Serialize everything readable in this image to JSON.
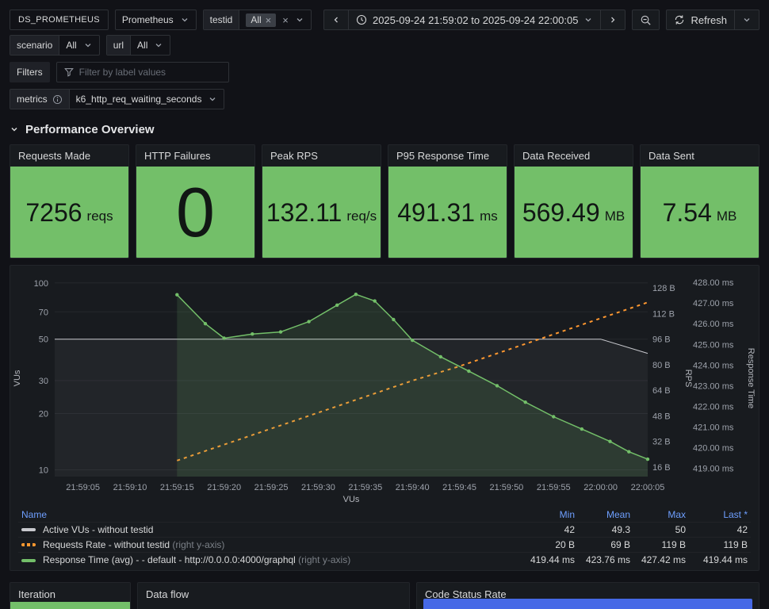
{
  "colors": {
    "green": "#73BF69",
    "orange": "#FF9830",
    "gray_series": "#C8C9CE",
    "legend_header_blue": "#6E9FFF",
    "status_bar_blue": "#4669E6",
    "stat_text": "#111614",
    "panel_bg": "#181b1f",
    "page_bg": "#111217"
  },
  "toolbar": {
    "datasource_label": "DS_PROMETHEUS",
    "datasource_value": "Prometheus",
    "testid": {
      "label": "testid",
      "chip": "All"
    },
    "time_range": "2025-09-24 21:59:02 to 2025-09-24 22:00:05",
    "refresh_label": "Refresh",
    "scenario": {
      "label": "scenario",
      "value": "All"
    },
    "url": {
      "label": "url",
      "value": "All"
    },
    "filters": {
      "label": "Filters",
      "placeholder": "Filter by label values"
    },
    "metrics": {
      "label": "metrics",
      "value": "k6_http_req_waiting_seconds"
    }
  },
  "section": {
    "title": "Performance Overview"
  },
  "stats": [
    {
      "title": "Requests Made",
      "value": "7256",
      "unit": "reqs"
    },
    {
      "title": "HTTP Failures",
      "value": "0",
      "unit": ""
    },
    {
      "title": "Peak RPS",
      "value": "132.11",
      "unit": "req/s"
    },
    {
      "title": "P95 Response Time",
      "value": "491.31",
      "unit": "ms"
    },
    {
      "title": "Data Received",
      "value": "569.49",
      "unit": "MB"
    },
    {
      "title": "Data Sent",
      "value": "7.54",
      "unit": "MB"
    }
  ],
  "chart_data": {
    "type": "line",
    "x_axis_label": "VUs",
    "x_origin": "21:59:00",
    "x_range": [
      2,
      65
    ],
    "x_ticks": [
      {
        "t": 5,
        "label": "21:59:05"
      },
      {
        "t": 10,
        "label": "21:59:10"
      },
      {
        "t": 15,
        "label": "21:59:15"
      },
      {
        "t": 20,
        "label": "21:59:20"
      },
      {
        "t": 25,
        "label": "21:59:25"
      },
      {
        "t": 30,
        "label": "21:59:30"
      },
      {
        "t": 35,
        "label": "21:59:35"
      },
      {
        "t": 40,
        "label": "21:59:40"
      },
      {
        "t": 45,
        "label": "21:59:45"
      },
      {
        "t": 50,
        "label": "21:59:50"
      },
      {
        "t": 55,
        "label": "21:59:55"
      },
      {
        "t": 60,
        "label": "22:00:00"
      },
      {
        "t": 65,
        "label": "22:00:05"
      }
    ],
    "left_axis": {
      "label": "VUs",
      "scale": "log",
      "ticks": [
        10,
        20,
        30,
        50,
        70,
        100
      ]
    },
    "right_axis_rps": {
      "label": "RPS",
      "ticks": [
        {
          "v": 16,
          "label": "16 B"
        },
        {
          "v": 32,
          "label": "32 B"
        },
        {
          "v": 48,
          "label": "48 B"
        },
        {
          "v": 64,
          "label": "64 B"
        },
        {
          "v": 80,
          "label": "80 B"
        },
        {
          "v": 96,
          "label": "96 B"
        },
        {
          "v": 112,
          "label": "112 B"
        },
        {
          "v": 128,
          "label": "128 B"
        }
      ]
    },
    "right_axis_rt": {
      "label": "Response Time",
      "ticks": [
        {
          "v": 419,
          "label": "419.00 ms"
        },
        {
          "v": 420,
          "label": "420.00 ms"
        },
        {
          "v": 421,
          "label": "421.00 ms"
        },
        {
          "v": 422,
          "label": "422.00 ms"
        },
        {
          "v": 423,
          "label": "423.00 ms"
        },
        {
          "v": 424,
          "label": "424.00 ms"
        },
        {
          "v": 425,
          "label": "425.00 ms"
        },
        {
          "v": 426,
          "label": "426.00 ms"
        },
        {
          "v": 427,
          "label": "427.00 ms"
        },
        {
          "v": 428,
          "label": "428.00 ms"
        }
      ]
    },
    "series": [
      {
        "name": "Active VUs - without testid",
        "axis": "vus",
        "color": "#C8C9CE",
        "width": 1,
        "dashed": false,
        "fill_opacity": 0.06,
        "show_points": false,
        "points": [
          [
            2,
            50
          ],
          [
            60,
            50
          ],
          [
            65,
            42
          ]
        ]
      },
      {
        "name": "Requests Rate - without testid",
        "axis": "rps",
        "color": "#FF9830",
        "width": 2,
        "dashed": true,
        "fill_opacity": 0,
        "show_points": false,
        "points": [
          [
            15,
            20
          ],
          [
            20,
            30
          ],
          [
            25,
            40
          ],
          [
            30,
            50
          ],
          [
            35,
            60
          ],
          [
            40,
            70
          ],
          [
            45,
            79
          ],
          [
            50,
            89
          ],
          [
            55,
            99
          ],
          [
            60,
            109
          ],
          [
            65,
            119
          ]
        ]
      },
      {
        "name": "Response Time (avg) - - default - http://0.0.0.0:4000/graphql",
        "axis": "rt",
        "color": "#73BF69",
        "width": 1.5,
        "dashed": false,
        "fill_opacity": 0.15,
        "show_points": true,
        "points": [
          [
            15,
            427.4
          ],
          [
            18,
            426.0
          ],
          [
            20,
            425.3
          ],
          [
            23,
            425.5
          ],
          [
            26,
            425.6
          ],
          [
            29,
            426.1
          ],
          [
            32,
            426.9
          ],
          [
            34,
            427.42
          ],
          [
            36,
            427.1
          ],
          [
            38,
            426.2
          ],
          [
            40,
            425.2
          ],
          [
            43,
            424.4
          ],
          [
            46,
            423.7
          ],
          [
            49,
            423.0
          ],
          [
            52,
            422.2
          ],
          [
            55,
            421.5
          ],
          [
            58,
            420.9
          ],
          [
            61,
            420.3
          ],
          [
            63,
            419.8
          ],
          [
            65,
            419.44
          ]
        ]
      }
    ]
  },
  "legend": {
    "headers": [
      "Name",
      "Min",
      "Mean",
      "Max",
      "Last *"
    ],
    "rows": [
      {
        "name": "Active VUs - without testid",
        "suffix": "",
        "color": "#C8C9CE",
        "dashed": false,
        "min": "42",
        "mean": "49.3",
        "max": "50",
        "last": "42"
      },
      {
        "name": "Requests Rate - without testid",
        "suffix": " (right y-axis)",
        "color": "#FF9830",
        "dashed": true,
        "min": "20 B",
        "mean": "69 B",
        "max": "119 B",
        "last": "119 B"
      },
      {
        "name": "Response Time (avg) - - default - http://0.0.0.0:4000/graphql",
        "suffix": " (right y-axis)",
        "color": "#73BF69",
        "dashed": false,
        "min": "419.44 ms",
        "mean": "423.76 ms",
        "max": "427.42 ms",
        "last": "419.44 ms"
      }
    ]
  },
  "bottom_panels": [
    {
      "title": "Iteration"
    },
    {
      "title": "Data flow"
    },
    {
      "title": "Code Status Rate"
    }
  ]
}
